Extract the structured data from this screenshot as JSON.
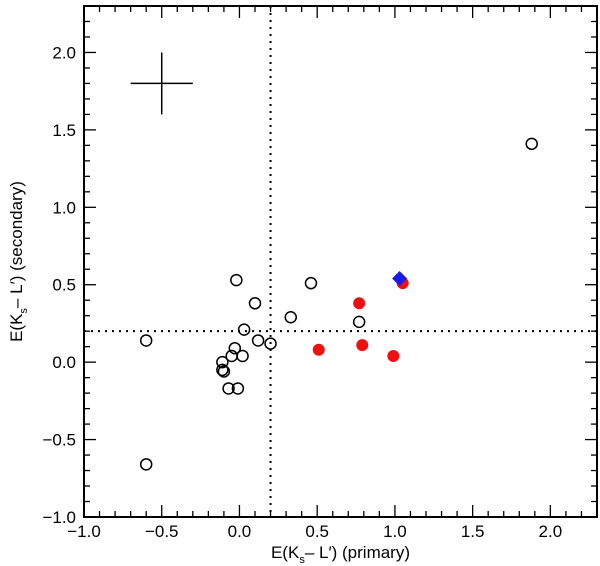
{
  "chart_data": {
    "type": "scatter",
    "title": "",
    "xlabel": {
      "base": "E(K",
      "sub": "s",
      "rest": "– L′) (primary)"
    },
    "ylabel": {
      "base": "E(K",
      "sub": "s",
      "rest": "– L′) (secondary)"
    },
    "xlim": [
      -1.0,
      2.3
    ],
    "ylim": [
      -1.0,
      2.3
    ],
    "x_ticks": [
      -1.0,
      -0.5,
      0.0,
      0.5,
      1.0,
      1.5,
      2.0
    ],
    "y_ticks": [
      -1.0,
      -0.5,
      0.0,
      0.5,
      1.0,
      1.5,
      2.0
    ],
    "x_tick_labels": [
      "−1.0",
      "−0.5",
      "0.0",
      "0.5",
      "1.0",
      "1.5",
      "2.0"
    ],
    "y_tick_labels": [
      "−1.0",
      "−0.5",
      "0.0",
      "0.5",
      "1.0",
      "1.5",
      "2.0"
    ],
    "x_minor_step": 0.1,
    "y_minor_step": 0.1,
    "reference_lines": {
      "x": 0.2,
      "y": 0.2,
      "style": "dotted"
    },
    "error_cross": {
      "x": -0.5,
      "y": 1.8,
      "xerr": 0.2,
      "yerr": 0.2
    },
    "series": [
      {
        "name": "open",
        "marker": "open-circle",
        "color": "#000000",
        "points": [
          {
            "x": -0.6,
            "y": 0.14
          },
          {
            "x": -0.6,
            "y": -0.66
          },
          {
            "x": -0.11,
            "y": 0.0
          },
          {
            "x": -0.11,
            "y": -0.05
          },
          {
            "x": -0.1,
            "y": -0.06
          },
          {
            "x": -0.07,
            "y": -0.17
          },
          {
            "x": -0.05,
            "y": 0.04
          },
          {
            "x": -0.03,
            "y": 0.09
          },
          {
            "x": -0.02,
            "y": 0.53
          },
          {
            "x": -0.01,
            "y": -0.17
          },
          {
            "x": 0.02,
            "y": 0.04
          },
          {
            "x": 0.03,
            "y": 0.21
          },
          {
            "x": 0.1,
            "y": 0.38
          },
          {
            "x": 0.12,
            "y": 0.14
          },
          {
            "x": 0.2,
            "y": 0.12
          },
          {
            "x": 0.33,
            "y": 0.29
          },
          {
            "x": 0.46,
            "y": 0.51
          },
          {
            "x": 0.77,
            "y": 0.26
          },
          {
            "x": 1.88,
            "y": 1.41
          }
        ]
      },
      {
        "name": "filled",
        "marker": "filled-circle",
        "color": "#ee1111",
        "points": [
          {
            "x": 0.51,
            "y": 0.08
          },
          {
            "x": 0.77,
            "y": 0.38
          },
          {
            "x": 0.79,
            "y": 0.11
          },
          {
            "x": 0.99,
            "y": 0.04
          },
          {
            "x": 1.05,
            "y": 0.51
          }
        ]
      },
      {
        "name": "diamond",
        "marker": "diamond",
        "color": "#1a1ae6",
        "points": [
          {
            "x": 1.03,
            "y": 0.54
          }
        ]
      }
    ]
  }
}
